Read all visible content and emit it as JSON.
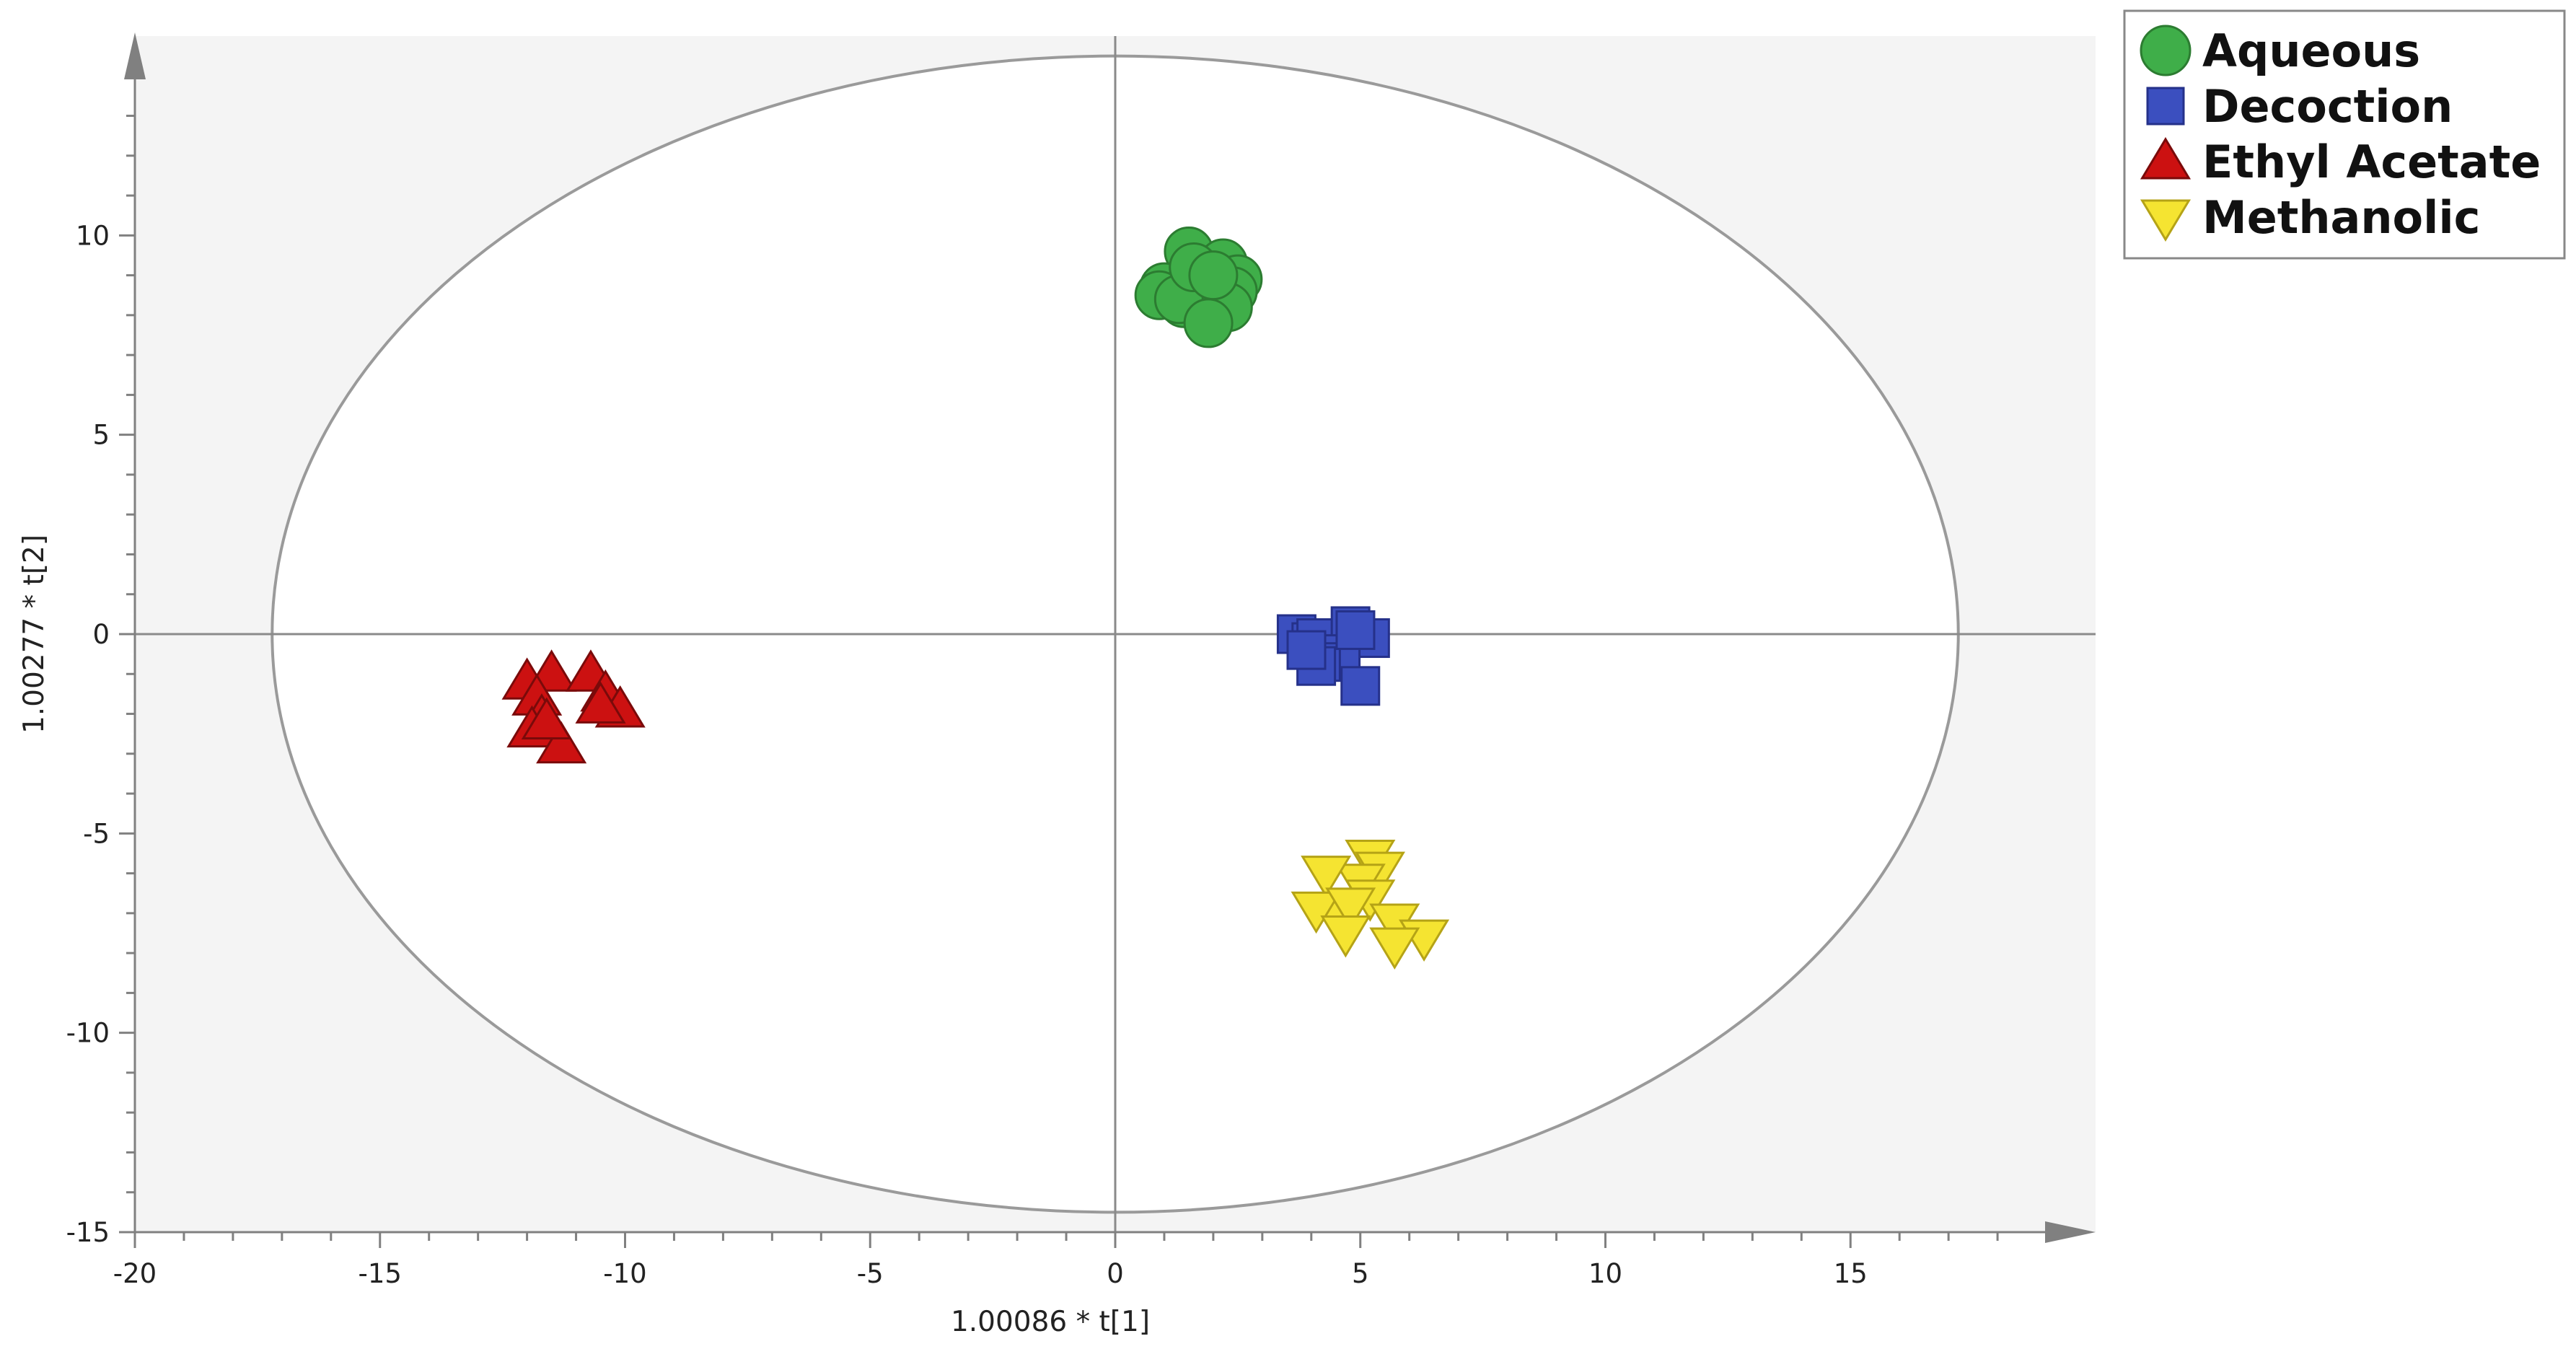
{
  "chart_data": {
    "type": "scatter",
    "xlabel": "1.00086 * t[1]",
    "ylabel": "1.00277 * t[2]",
    "xlim": [
      -20,
      20
    ],
    "ylim": [
      -15,
      15
    ],
    "x_ticks": [
      -20,
      -15,
      -10,
      -5,
      0,
      5,
      10,
      15
    ],
    "y_ticks": [
      -15,
      -10,
      -5,
      0,
      5,
      10
    ],
    "x_tick_labels": [
      "-20",
      "-15",
      "-10",
      "-5",
      "0",
      "5",
      "10",
      "15"
    ],
    "y_tick_labels": [
      "-15",
      "-10",
      "-5",
      "0",
      "5",
      "10"
    ],
    "hotelling_ellipse": {
      "semi_axis_x": 17.2,
      "semi_axis_y": 14.5
    },
    "grid": false,
    "legend_position": "top-right",
    "series": [
      {
        "name": "Aqueous",
        "marker": "circle",
        "color": "#3fae49",
        "edge": "#2c7c31",
        "points": [
          [
            1.5,
            9.6
          ],
          [
            2.2,
            9.3
          ],
          [
            2.5,
            8.9
          ],
          [
            1.0,
            8.7
          ],
          [
            2.4,
            8.6
          ],
          [
            0.9,
            8.5
          ],
          [
            1.4,
            8.3
          ],
          [
            2.3,
            8.2
          ],
          [
            1.3,
            8.4
          ],
          [
            1.9,
            7.8
          ],
          [
            1.6,
            9.2
          ],
          [
            2.0,
            9.0
          ]
        ]
      },
      {
        "name": "Decoction",
        "marker": "square",
        "color": "#3b4fbf",
        "edge": "#25318a",
        "points": [
          [
            3.7,
            0.0
          ],
          [
            4.0,
            -0.2
          ],
          [
            4.1,
            -0.1
          ],
          [
            4.8,
            0.2
          ],
          [
            5.2,
            -0.1
          ],
          [
            4.6,
            -0.5
          ],
          [
            4.2,
            -0.7
          ],
          [
            5.0,
            -1.3
          ],
          [
            4.1,
            -0.8
          ],
          [
            4.9,
            0.1
          ],
          [
            3.9,
            -0.4
          ]
        ]
      },
      {
        "name": "Ethyl Acetate",
        "marker": "triangle-up",
        "color": "#cc1111",
        "edge": "#7a0a0a",
        "points": [
          [
            -12.0,
            -1.2
          ],
          [
            -11.5,
            -1.0
          ],
          [
            -10.7,
            -1.0
          ],
          [
            -11.8,
            -1.6
          ],
          [
            -10.4,
            -1.5
          ],
          [
            -10.1,
            -1.9
          ],
          [
            -10.5,
            -1.8
          ],
          [
            -11.7,
            -2.1
          ],
          [
            -11.9,
            -2.4
          ],
          [
            -11.3,
            -2.8
          ],
          [
            -11.6,
            -2.2
          ]
        ]
      },
      {
        "name": "Methanolic",
        "marker": "triangle-down",
        "color": "#f5e431",
        "edge": "#b5a316",
        "points": [
          [
            5.2,
            -5.6
          ],
          [
            5.4,
            -5.9
          ],
          [
            5.0,
            -6.2
          ],
          [
            4.3,
            -6.0
          ],
          [
            5.2,
            -6.6
          ],
          [
            4.5,
            -7.0
          ],
          [
            4.1,
            -6.9
          ],
          [
            4.8,
            -6.8
          ],
          [
            5.7,
            -7.2
          ],
          [
            6.3,
            -7.6
          ],
          [
            4.7,
            -7.5
          ],
          [
            5.7,
            -7.8
          ]
        ]
      }
    ]
  }
}
